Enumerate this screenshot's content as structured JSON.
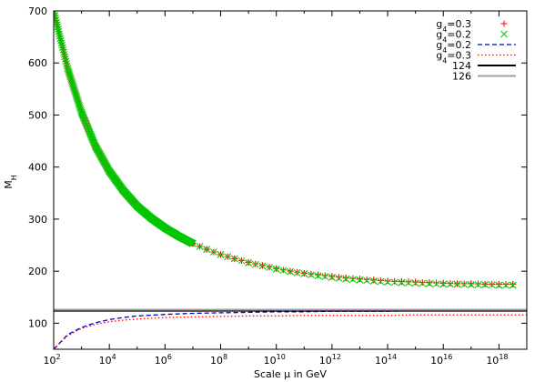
{
  "chart_data": {
    "type": "scatter",
    "xlabel": "Scale μ  in GeV",
    "ylabel": "M_H",
    "ylabel_main": "M",
    "ylabel_sub": "H",
    "x_scale": "log",
    "xlim": [
      100,
      1e+19
    ],
    "ylim": [
      50,
      700
    ],
    "x_ticks": [
      {
        "value": 100,
        "mant": "10",
        "exp": "2"
      },
      {
        "value": 10000.0,
        "mant": "10",
        "exp": "4"
      },
      {
        "value": 1000000.0,
        "mant": "10",
        "exp": "6"
      },
      {
        "value": 100000000.0,
        "mant": "10",
        "exp": "8"
      },
      {
        "value": 10000000000.0,
        "mant": "10",
        "exp": "10"
      },
      {
        "value": 1000000000000.0,
        "mant": "10",
        "exp": "12"
      },
      {
        "value": 100000000000000.0,
        "mant": "10",
        "exp": "14"
      },
      {
        "value": 1e+16,
        "mant": "10",
        "exp": "16"
      },
      {
        "value": 1e+18,
        "mant": "10",
        "exp": "18"
      }
    ],
    "y_ticks": [
      {
        "value": 100,
        "label": "100"
      },
      {
        "value": 200,
        "label": "200"
      },
      {
        "value": 300,
        "label": "300"
      },
      {
        "value": 400,
        "label": "400"
      },
      {
        "value": 500,
        "label": "500"
      },
      {
        "value": 600,
        "label": "600"
      },
      {
        "value": 700,
        "label": "700"
      }
    ],
    "grid": false,
    "legend_position": "top-right",
    "series": [
      {
        "name": "g4=0.3",
        "name_main": "g",
        "name_sub": "4",
        "name_rest": "=0.3",
        "kind": "points-plus",
        "color": "#ff0000",
        "log10x": [
          2.0,
          2.5,
          3.0,
          3.5,
          4.0,
          4.5,
          5.0,
          5.5,
          6.0,
          6.5,
          7.0,
          7.5,
          8.0,
          8.5,
          9.0,
          9.5,
          10.0,
          10.5,
          11.0,
          11.5,
          12.0,
          12.5,
          13.0,
          13.5,
          14.0,
          14.5,
          15.0,
          15.5,
          16.0,
          16.5,
          17.0,
          17.5,
          18.0,
          18.5
        ],
        "y": [
          700,
          590,
          505,
          440,
          392,
          355,
          325,
          302,
          283,
          267,
          253,
          242,
          232,
          224,
          217,
          211,
          205,
          200,
          196,
          193,
          190,
          187,
          185,
          183,
          181,
          180,
          179,
          178,
          177,
          176,
          176,
          175,
          175,
          175
        ]
      },
      {
        "name": "g4=0.2",
        "name_main": "g",
        "name_sub": "4",
        "name_rest": "=0.2",
        "kind": "points-x",
        "color": "#00c800",
        "log10x": [
          2.0,
          2.5,
          3.0,
          3.5,
          4.0,
          4.5,
          5.0,
          5.5,
          6.0,
          6.5,
          7.0,
          7.5,
          8.0,
          8.5,
          9.0,
          9.5,
          10.0,
          10.5,
          11.0,
          11.5,
          12.0,
          12.5,
          13.0,
          13.5,
          14.0,
          14.5,
          15.0,
          15.5,
          16.0,
          16.5,
          17.0,
          17.5,
          18.0,
          18.5
        ],
        "y": [
          700,
          590,
          505,
          440,
          392,
          355,
          325,
          302,
          283,
          267,
          253,
          242,
          232,
          224,
          216,
          210,
          204,
          199,
          195,
          191,
          188,
          185,
          183,
          181,
          179,
          178,
          177,
          176,
          175,
          175,
          174,
          174,
          173,
          173
        ]
      },
      {
        "name": "g4=0.2",
        "name_main": "g",
        "name_sub": "4",
        "name_rest": "=0.2",
        "kind": "line-dashed",
        "color": "#0000cc",
        "log10x": [
          2.0,
          2.5,
          3.0,
          3.5,
          4.0,
          4.5,
          5.0,
          6.0,
          7.0,
          8.0,
          9.0,
          10.0,
          11.0,
          12.0,
          13.0,
          14.0,
          15.0,
          16.0,
          17.0,
          18.0,
          19.0
        ],
        "y": [
          50,
          78,
          92,
          101,
          107,
          111,
          114,
          117,
          119,
          120,
          121,
          122,
          122,
          123,
          123,
          123,
          124,
          124,
          124,
          124,
          124
        ]
      },
      {
        "name": "g4=0.3",
        "name_main": "g",
        "name_sub": "4",
        "name_rest": "=0.3",
        "kind": "line-dotted",
        "color": "#ff0000",
        "log10x": [
          2.0,
          2.5,
          3.0,
          3.5,
          4.0,
          4.5,
          5.0,
          6.0,
          7.0,
          8.0,
          9.0,
          10.0,
          11.0,
          12.0,
          13.0,
          14.0,
          15.0,
          16.0,
          17.0,
          18.0,
          19.0
        ],
        "y": [
          50,
          76,
          90,
          98,
          103,
          106,
          108,
          111,
          112,
          113,
          114,
          114,
          115,
          115,
          115,
          115,
          116,
          116,
          116,
          116,
          116
        ]
      },
      {
        "name": "124",
        "name_main": "124",
        "name_sub": "",
        "name_rest": "",
        "kind": "hline",
        "color": "#000000",
        "value": 124
      },
      {
        "name": "126",
        "name_main": "126",
        "name_sub": "",
        "name_rest": "",
        "kind": "hline",
        "color": "#a0a0a0",
        "value": 126
      }
    ]
  }
}
